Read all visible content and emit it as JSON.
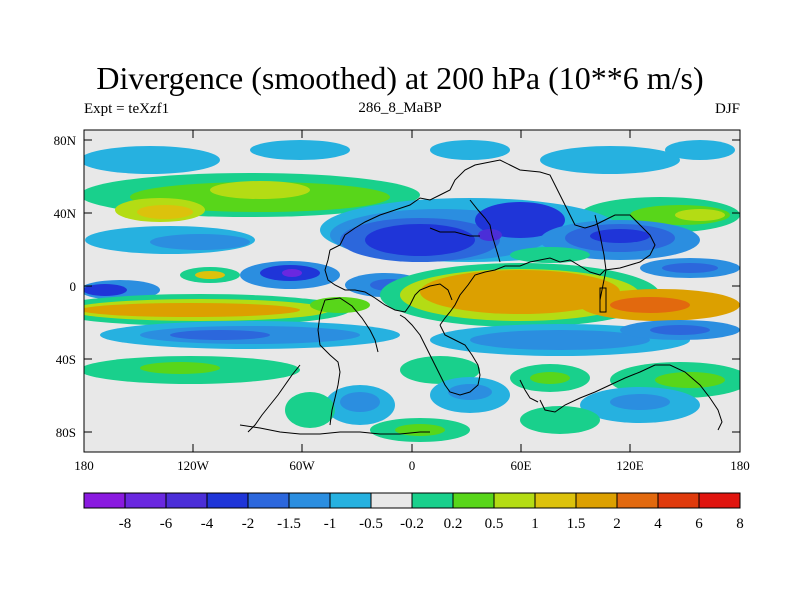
{
  "title": "Divergence (smoothed) at 200 hPa (10**6 m/s)",
  "left_label": "Expt = teXzf1",
  "center_label": "286_8_MaBP",
  "right_label": "DJF",
  "map": {
    "projection": "cylindrical-equidistant",
    "lon_range": [
      -180,
      180
    ],
    "lat_range": [
      -90,
      90
    ],
    "lat_ticks": [
      "80N",
      "40N",
      "0",
      "40S",
      "80S"
    ],
    "lon_ticks": [
      "180",
      "120W",
      "60W",
      "0",
      "60E",
      "120E",
      "180"
    ],
    "background_color": "#e8e8e8",
    "coastline_color": "#000000"
  },
  "colorbar": {
    "colors": [
      "#8a1ae0",
      "#6a28e0",
      "#4b2ed8",
      "#1f35d8",
      "#2c67dc",
      "#2b8ee0",
      "#26b1e0",
      "#e8e8e8",
      "#19d08c",
      "#58d61a",
      "#b4dc14",
      "#dcc20c",
      "#dca000",
      "#e2690e",
      "#e03a0c",
      "#e0140e"
    ],
    "labels": [
      "-8",
      "-6",
      "-4",
      "-2",
      "-1.5",
      "-1",
      "-0.5",
      "-0.2",
      "0.2",
      "0.5",
      "1",
      "1.5",
      "2",
      "4",
      "6",
      "8"
    ]
  }
}
